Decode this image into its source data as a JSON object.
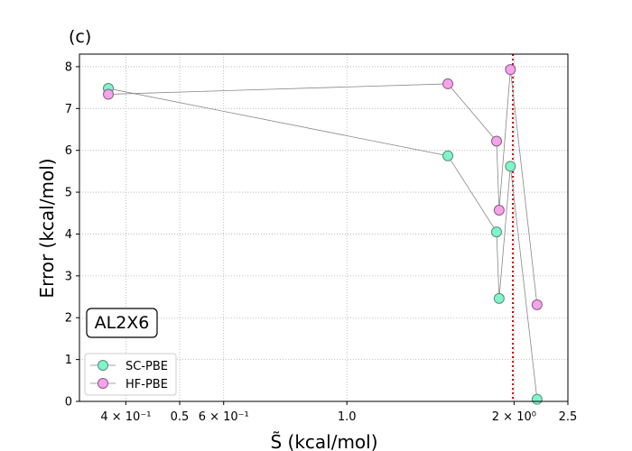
{
  "chart_data": {
    "type": "scatter",
    "panel_label": "(c)",
    "box_label": "AL2X6",
    "xlabel": "S̃ (kcal/mol)",
    "ylabel": "Error (kcal/mol)",
    "xscale": "log",
    "xlim": [
      0.33,
      2.5
    ],
    "ylim": [
      0,
      8.3
    ],
    "grid": true,
    "legend_position": "lower-left",
    "x_ticks": [
      {
        "value": 0.4,
        "label": "4 × 10⁻¹"
      },
      {
        "value": 0.5,
        "label": "0.5"
      },
      {
        "value": 0.6,
        "label": "6 × 10⁻¹"
      },
      {
        "value": 1.0,
        "label": "1.0"
      },
      {
        "value": 2.0,
        "label": "2 × 10⁰"
      },
      {
        "value": 2.5,
        "label": "2.5"
      }
    ],
    "y_ticks": [
      0,
      1,
      2,
      3,
      4,
      5,
      6,
      7,
      8
    ],
    "vline": {
      "x": 1.99,
      "color": "#cc0000",
      "style": "dotted"
    },
    "series": [
      {
        "name": "SC-PBE",
        "color": "#7ff5c9",
        "points": [
          {
            "x": 0.372,
            "y": 7.48
          },
          {
            "x": 1.52,
            "y": 5.87
          },
          {
            "x": 1.86,
            "y": 4.05
          },
          {
            "x": 1.88,
            "y": 2.46
          },
          {
            "x": 1.97,
            "y": 5.62
          },
          {
            "x": 2.2,
            "y": 0.05
          }
        ]
      },
      {
        "name": "HF-PBE",
        "color": "#f5a3ea",
        "points": [
          {
            "x": 0.372,
            "y": 7.34
          },
          {
            "x": 1.52,
            "y": 7.59
          },
          {
            "x": 1.86,
            "y": 6.22
          },
          {
            "x": 1.88,
            "y": 4.57
          },
          {
            "x": 1.97,
            "y": 7.93
          },
          {
            "x": 2.2,
            "y": 2.31
          }
        ]
      }
    ]
  }
}
